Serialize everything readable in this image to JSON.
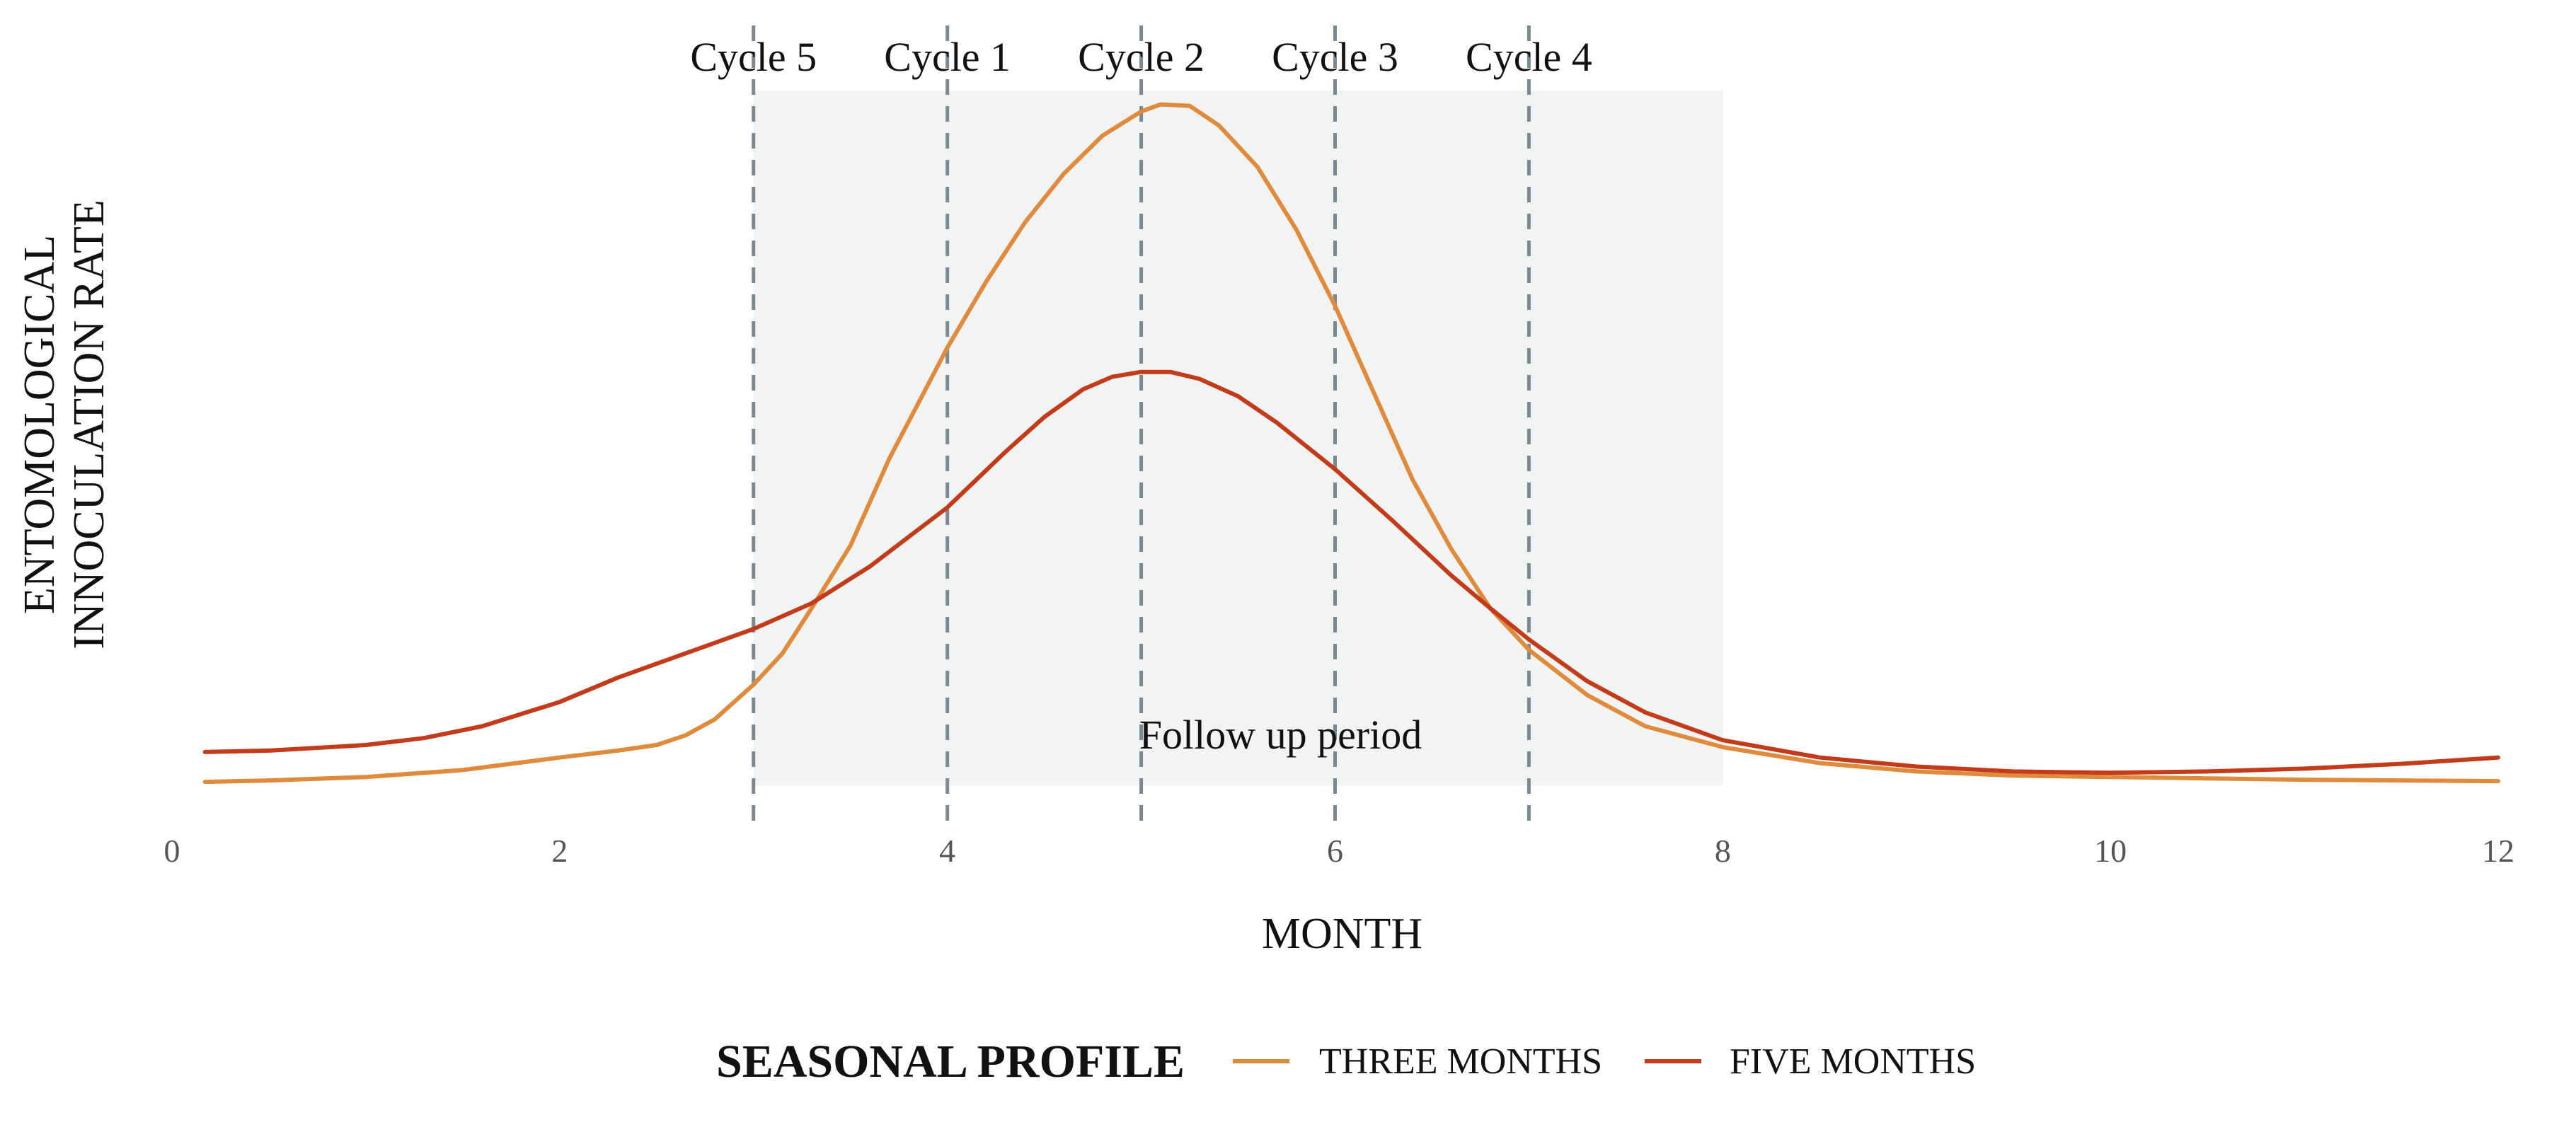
{
  "chart_data": {
    "type": "line",
    "xlabel": "MONTH",
    "ylabel_lines": [
      "ENTOMOLOGICAL",
      "INNOCULATION  RATE"
    ],
    "xlim": [
      0,
      12
    ],
    "ylim": [
      0,
      1
    ],
    "x_ticks": [
      0,
      2,
      4,
      6,
      8,
      10,
      12
    ],
    "y_ticks_shown": false,
    "grid": false,
    "shaded_region": {
      "x_start": 3,
      "x_end": 8,
      "label": "Follow up period",
      "color": "#f2f3f3"
    },
    "cycles": [
      {
        "label": "Cycle 5",
        "x": 3
      },
      {
        "label": "Cycle 1",
        "x": 4
      },
      {
        "label": "Cycle 2",
        "x": 5
      },
      {
        "label": "Cycle 3",
        "x": 6
      },
      {
        "label": "Cycle 4",
        "x": 7
      }
    ],
    "cycle_line_color": "#7a8a94",
    "legend": {
      "title": "SEASONAL  PROFILE",
      "position": "bottom"
    },
    "series": [
      {
        "name": "THREE MONTHS",
        "color": "#e08a3c",
        "points": [
          [
            0.17,
            0.005
          ],
          [
            0.5,
            0.007
          ],
          [
            1.0,
            0.012
          ],
          [
            1.5,
            0.022
          ],
          [
            2.0,
            0.04
          ],
          [
            2.3,
            0.05
          ],
          [
            2.5,
            0.058
          ],
          [
            2.65,
            0.072
          ],
          [
            2.8,
            0.095
          ],
          [
            3.0,
            0.145
          ],
          [
            3.15,
            0.19
          ],
          [
            3.3,
            0.255
          ],
          [
            3.5,
            0.345
          ],
          [
            3.7,
            0.47
          ],
          [
            4.0,
            0.63
          ],
          [
            4.2,
            0.725
          ],
          [
            4.4,
            0.81
          ],
          [
            4.6,
            0.88
          ],
          [
            4.8,
            0.935
          ],
          [
            5.0,
            0.97
          ],
          [
            5.1,
            0.98
          ],
          [
            5.25,
            0.978
          ],
          [
            5.4,
            0.95
          ],
          [
            5.6,
            0.89
          ],
          [
            5.8,
            0.8
          ],
          [
            6.0,
            0.69
          ],
          [
            6.2,
            0.565
          ],
          [
            6.4,
            0.44
          ],
          [
            6.6,
            0.34
          ],
          [
            6.8,
            0.255
          ],
          [
            7.0,
            0.195
          ],
          [
            7.3,
            0.13
          ],
          [
            7.6,
            0.085
          ],
          [
            8.0,
            0.055
          ],
          [
            8.5,
            0.032
          ],
          [
            9.0,
            0.02
          ],
          [
            9.5,
            0.014
          ],
          [
            10.0,
            0.012
          ],
          [
            10.5,
            0.01
          ],
          [
            11.0,
            0.008
          ],
          [
            11.5,
            0.007
          ],
          [
            12.0,
            0.006
          ]
        ]
      },
      {
        "name": "FIVE MONTHS",
        "color": "#c43b1a",
        "points": [
          [
            0.17,
            0.048
          ],
          [
            0.5,
            0.05
          ],
          [
            1.0,
            0.058
          ],
          [
            1.3,
            0.068
          ],
          [
            1.6,
            0.085
          ],
          [
            2.0,
            0.12
          ],
          [
            2.3,
            0.155
          ],
          [
            2.6,
            0.185
          ],
          [
            3.0,
            0.225
          ],
          [
            3.3,
            0.262
          ],
          [
            3.6,
            0.315
          ],
          [
            4.0,
            0.4
          ],
          [
            4.3,
            0.48
          ],
          [
            4.5,
            0.53
          ],
          [
            4.7,
            0.57
          ],
          [
            4.85,
            0.588
          ],
          [
            5.0,
            0.595
          ],
          [
            5.15,
            0.595
          ],
          [
            5.3,
            0.585
          ],
          [
            5.5,
            0.56
          ],
          [
            5.7,
            0.522
          ],
          [
            6.0,
            0.455
          ],
          [
            6.3,
            0.38
          ],
          [
            6.6,
            0.302
          ],
          [
            6.8,
            0.255
          ],
          [
            7.0,
            0.21
          ],
          [
            7.3,
            0.15
          ],
          [
            7.6,
            0.105
          ],
          [
            8.0,
            0.065
          ],
          [
            8.5,
            0.04
          ],
          [
            9.0,
            0.027
          ],
          [
            9.5,
            0.02
          ],
          [
            10.0,
            0.018
          ],
          [
            10.5,
            0.02
          ],
          [
            11.0,
            0.024
          ],
          [
            11.5,
            0.031
          ],
          [
            12.0,
            0.04
          ]
        ]
      }
    ]
  }
}
